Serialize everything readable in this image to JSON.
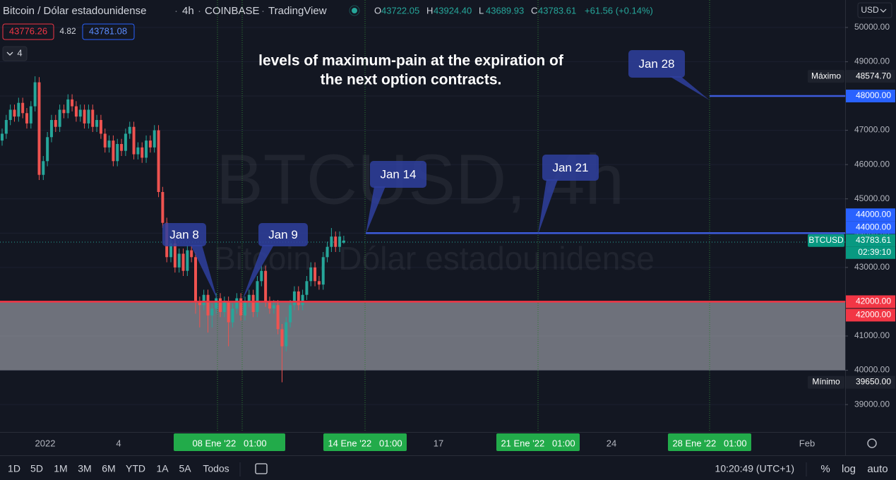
{
  "header": {
    "symbol": "Bitcoin / Dólar estadounidense",
    "interval": "4h",
    "exchange": "COINBASE",
    "source": "TradingView",
    "ohlc": [
      {
        "key": "O",
        "value": "43722.05"
      },
      {
        "key": "H",
        "value": "43924.40"
      },
      {
        "key": "L",
        "value": "43689.93"
      },
      {
        "key": "C",
        "value": "43783.61"
      }
    ],
    "change": "+61.56 (+0.14%)",
    "bid": "43776.26",
    "spread": "4.82",
    "ask": "43781.08",
    "indicators": "4",
    "currency": "USD"
  },
  "watermark": {
    "ticker": "BTCUSD, 4h",
    "name": "Bitcoin / Dólar estadounidense"
  },
  "annotation": [
    "levels of maximum-pain at the expiration of",
    "the next option contracts."
  ],
  "callouts": [
    "Jan 8",
    "Jan 9",
    "Jan 14",
    "Jan 21",
    "Jan 28"
  ],
  "price_axis": {
    "ylim": [
      38200,
      50800
    ],
    "ticks": [
      {
        "value": 50000,
        "label": "50000.00"
      },
      {
        "value": 49000,
        "label": "49000.00"
      },
      {
        "value": 48000,
        "label": "48000.00"
      },
      {
        "value": 47000,
        "label": "47000.00"
      },
      {
        "value": 46000,
        "label": "46000.00"
      },
      {
        "value": 45000,
        "label": "45000.00"
      },
      {
        "value": 44000,
        "label": "44000.00"
      },
      {
        "value": 43000,
        "label": "43000.00"
      },
      {
        "value": 42000,
        "label": "42000.00"
      },
      {
        "value": 41000,
        "label": "41000.00"
      },
      {
        "value": 40000,
        "label": "40000.00"
      },
      {
        "value": 39000,
        "label": "39000.00"
      }
    ]
  },
  "price_tags": [
    {
      "name": "Máximo",
      "value": 48574.7,
      "label": "48574.70",
      "style": "dark"
    },
    {
      "value": 48000,
      "label": "48000.00",
      "style": "blue"
    },
    {
      "value": 44000,
      "label": "44000.00",
      "style": "blue"
    },
    {
      "value": 44000,
      "label": "44000.00",
      "style": "blue"
    },
    {
      "name": "BTCUSD",
      "value": 43783.61,
      "label": "43783.61",
      "countdown": "02:39:10",
      "style": "teal"
    },
    {
      "value": 42000,
      "label": "42000.00",
      "style": "red"
    },
    {
      "value": 42000,
      "label": "42000.00",
      "style": "red"
    },
    {
      "name": "Mínimo",
      "value": 39650,
      "label": "39650.00",
      "style": "dark"
    }
  ],
  "levels": [
    {
      "value": 48000,
      "color": "#3d5bdb"
    },
    {
      "value": 44000,
      "color": "#3d5bdb"
    },
    {
      "value": 42000,
      "color": "#f23645"
    }
  ],
  "zone": [
    40000,
    42000
  ],
  "time_axis": [
    "2022",
    "4",
    "08 Ene '22   01:00",
    "14 Ene '22   01:00",
    "17",
    "21 Ene '22   01:00",
    "24",
    "28 Ene '22   01:00",
    "Feb"
  ],
  "colors": {
    "up": "#26a69a",
    "down": "#ef5350"
  },
  "candles": [
    [
      46700,
      47050,
      46550,
      46900
    ],
    [
      46900,
      47450,
      46750,
      47300
    ],
    [
      47300,
      47750,
      47150,
      47600
    ],
    [
      47600,
      47750,
      47250,
      47400
    ],
    [
      47400,
      47950,
      47250,
      47800
    ],
    [
      47800,
      47950,
      47350,
      47500
    ],
    [
      47500,
      47650,
      47050,
      47200
    ],
    [
      47200,
      47850,
      47050,
      47700
    ],
    [
      47700,
      48574.7,
      47550,
      48400
    ],
    [
      48400,
      48550,
      45550,
      45700
    ],
    [
      45700,
      46250,
      45550,
      46100
    ],
    [
      46100,
      46950,
      45950,
      46800
    ],
    [
      46800,
      47450,
      46650,
      47300
    ],
    [
      47300,
      47450,
      46950,
      47100
    ],
    [
      47100,
      47750,
      46950,
      47600
    ],
    [
      47600,
      47750,
      47350,
      47500
    ],
    [
      47500,
      48050,
      47350,
      47900
    ],
    [
      47900,
      48050,
      47550,
      47700
    ],
    [
      47700,
      47850,
      47250,
      47400
    ],
    [
      47400,
      47750,
      47250,
      47600
    ],
    [
      47600,
      47750,
      47050,
      47200
    ],
    [
      47200,
      47750,
      47050,
      47600
    ],
    [
      47600,
      47750,
      46950,
      47100
    ],
    [
      47100,
      47450,
      46950,
      47300
    ],
    [
      47300,
      47450,
      46750,
      46900
    ],
    [
      46900,
      47050,
      46350,
      46500
    ],
    [
      46500,
      46850,
      46350,
      46700
    ],
    [
      46700,
      46850,
      45950,
      46100
    ],
    [
      46100,
      46750,
      45950,
      46600
    ],
    [
      46600,
      46750,
      46250,
      46400
    ],
    [
      46400,
      47050,
      46250,
      46900
    ],
    [
      46900,
      47250,
      46750,
      47100
    ],
    [
      47100,
      47250,
      46150,
      46300
    ],
    [
      46300,
      46650,
      46150,
      46500
    ],
    [
      46500,
      46650,
      46050,
      46200
    ],
    [
      46200,
      46850,
      46050,
      46700
    ],
    [
      46700,
      46850,
      46350,
      46500
    ],
    [
      46500,
      47150,
      46350,
      47000
    ],
    [
      47000,
      47150,
      45050,
      45200
    ],
    [
      45200,
      45350,
      44150,
      44300
    ],
    [
      44300,
      44450,
      43150,
      43300
    ],
    [
      43300,
      43850,
      43150,
      43700
    ],
    [
      43700,
      43850,
      42850,
      43000
    ],
    [
      43000,
      43550,
      42850,
      43400
    ],
    [
      43400,
      43550,
      42750,
      42900
    ],
    [
      42900,
      43650,
      42750,
      43500
    ],
    [
      43500,
      43650,
      43150,
      43300
    ],
    [
      43300,
      43450,
      41650,
      42000
    ],
    [
      42000,
      42150,
      41250,
      41900
    ],
    [
      41900,
      42350,
      41750,
      42200
    ],
    [
      42200,
      42350,
      41100,
      41600
    ],
    [
      41600,
      41950,
      41250,
      41800
    ],
    [
      41800,
      42250,
      41650,
      42100
    ],
    [
      42100,
      42250,
      41550,
      41700
    ],
    [
      41700,
      42150,
      41550,
      42000
    ],
    [
      42000,
      42150,
      40700,
      41400
    ],
    [
      41400,
      41950,
      41250,
      41800
    ],
    [
      41800,
      42250,
      41650,
      42100
    ],
    [
      42100,
      42250,
      41450,
      41600
    ],
    [
      41600,
      42150,
      41450,
      42000
    ],
    [
      42000,
      42350,
      41850,
      42200
    ],
    [
      42200,
      42350,
      41550,
      41700
    ],
    [
      41700,
      42750,
      41550,
      42600
    ],
    [
      42600,
      43050,
      42450,
      42900
    ],
    [
      42900,
      43050,
      41850,
      42000
    ],
    [
      42000,
      42150,
      41650,
      41800
    ],
    [
      41800,
      42050,
      41650,
      41900
    ],
    [
      41900,
      42050,
      41050,
      41200
    ],
    [
      41200,
      41350,
      39650,
      40700
    ],
    [
      40700,
      41550,
      40550,
      41400
    ],
    [
      41400,
      42050,
      41250,
      41900
    ],
    [
      41900,
      42450,
      41750,
      42300
    ],
    [
      42300,
      42450,
      41750,
      41900
    ],
    [
      41900,
      42350,
      41750,
      42200
    ],
    [
      42200,
      42750,
      42050,
      42600
    ],
    [
      42600,
      43150,
      42450,
      43000
    ],
    [
      43000,
      43150,
      42450,
      42600
    ],
    [
      42600,
      42750,
      42350,
      42500
    ],
    [
      42500,
      43450,
      42350,
      43300
    ],
    [
      43300,
      43750,
      43150,
      43600
    ],
    [
      43600,
      44150,
      43450,
      43900
    ],
    [
      43900,
      44050,
      43450,
      43600
    ],
    [
      43600,
      44050,
      43450,
      43900
    ],
    [
      43722.05,
      43924.4,
      43689.93,
      43783.61
    ]
  ],
  "toolbar": {
    "ranges": [
      "1D",
      "5D",
      "1M",
      "3M",
      "6M",
      "YTD",
      "1A",
      "5A",
      "Todos"
    ],
    "clock": "10:20:49 (UTC+1)",
    "options": [
      "%",
      "log",
      "auto"
    ]
  }
}
